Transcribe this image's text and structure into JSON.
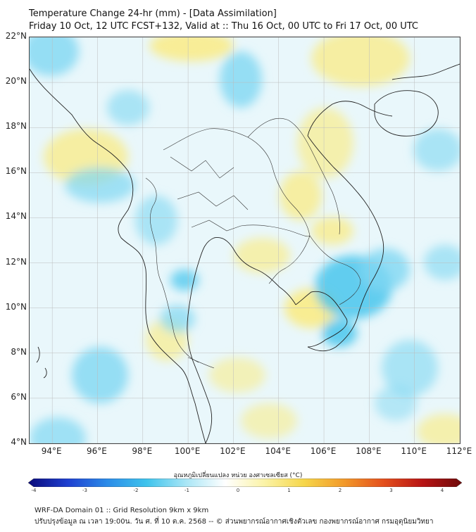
{
  "title_line1": "Temperature Change 24-hr (mm) - [Data Assimilation]",
  "title_line2": "Friday 10 Oct, 12 UTC FCST+132, Valid at :: Thu 16 Oct, 00 UTC to Fri 17 Oct, 00 UTC",
  "map": {
    "lon_range": [
      93,
      112
    ],
    "lat_range": [
      4,
      22
    ],
    "lat_ticks": [
      {
        "value": 22,
        "label": "22°N"
      },
      {
        "value": 20,
        "label": "20°N"
      },
      {
        "value": 18,
        "label": "18°N"
      },
      {
        "value": 16,
        "label": "16°N"
      },
      {
        "value": 14,
        "label": "14°N"
      },
      {
        "value": 12,
        "label": "12°N"
      },
      {
        "value": 10,
        "label": "10°N"
      },
      {
        "value": 8,
        "label": "8°N"
      },
      {
        "value": 6,
        "label": "6°N"
      },
      {
        "value": 4,
        "label": "4°N"
      }
    ],
    "lon_ticks": [
      {
        "value": 94,
        "label": "94°E"
      },
      {
        "value": 96,
        "label": "96°E"
      },
      {
        "value": 98,
        "label": "98°E"
      },
      {
        "value": 100,
        "label": "100°E"
      },
      {
        "value": 102,
        "label": "102°E"
      },
      {
        "value": 104,
        "label": "104°E"
      },
      {
        "value": 106,
        "label": "106°E"
      },
      {
        "value": 108,
        "label": "108°E"
      },
      {
        "value": 110,
        "label": "110°E"
      },
      {
        "value": 112,
        "label": "112°E"
      }
    ],
    "gridlines": true,
    "colors": {
      "warm": "#f9ec8c",
      "cool": "#7fd7f2",
      "strong_cool": "#3ec3ec",
      "neutral": "#e9f7fb",
      "coast": "#222222"
    }
  },
  "colorbar": {
    "title": "อุณหภูมิเปลี่ยนแปลง หน่วย องศาเซลเซียส (°C)",
    "range": [
      -4,
      4
    ],
    "ticks": [
      "-4",
      "-3",
      "-2",
      "-1",
      "0",
      "1",
      "2",
      "3",
      "4"
    ],
    "colors": [
      "#0a0a7a",
      "#1e3fd0",
      "#2b8be8",
      "#3ec3ec",
      "#a9e6f6",
      "#ffffff",
      "#fbf3a6",
      "#f6d64a",
      "#f29a2a",
      "#e4501d",
      "#b81414",
      "#6e0a0a"
    ]
  },
  "footer_line1": "WRF-DA Domain 01 :: Grid Resolution 9km x 9km",
  "footer_line2": "ปรับปรุงข้อมูล ณ เวลา 19:00น. วัน ศ. ที่ 10 ต.ค. 2568 -- © ส่วนพยากรณ์อากาศเชิงตัวเลข กองพยากรณ์อากาศ กรมอุตุนิยมวิทยา"
}
